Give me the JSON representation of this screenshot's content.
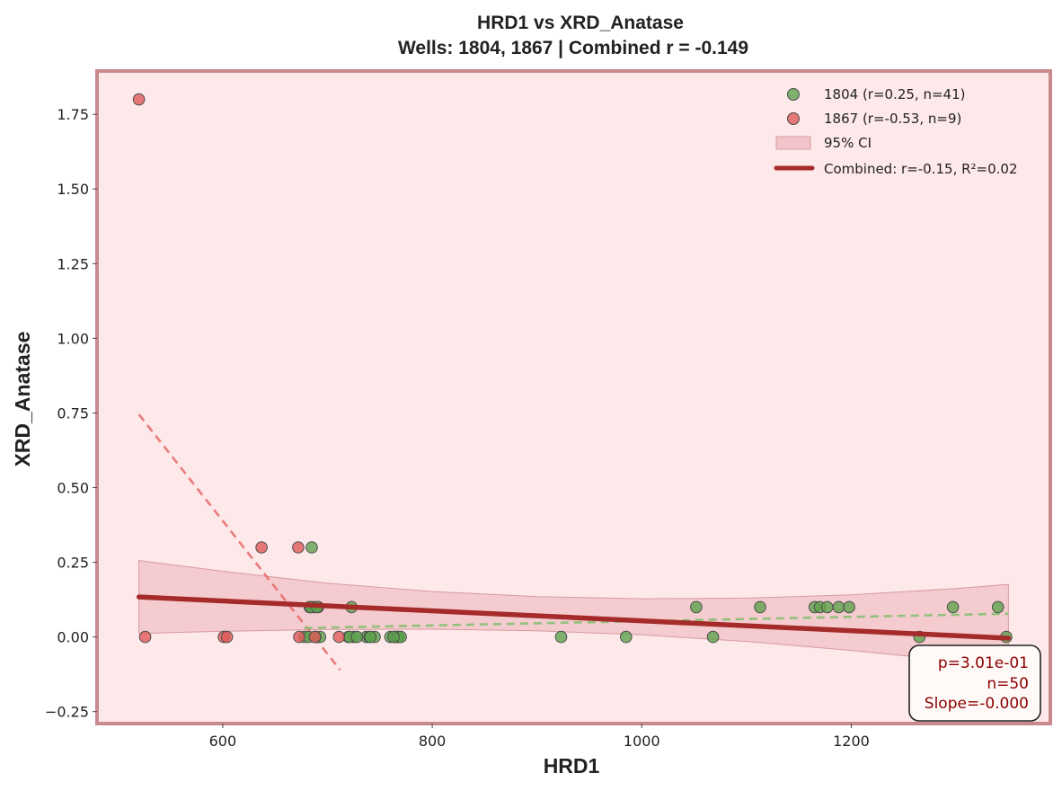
{
  "chart_data": {
    "type": "scatter",
    "title": "HRD1 vs XRD_Anatase",
    "subtitle": "Wells: 1804, 1867 | Combined r = -0.149",
    "xlabel": "HRD1",
    "ylabel": "XRD_Anatase",
    "xlim": [
      480,
      1390
    ],
    "ylim": [
      -0.29,
      1.895
    ],
    "xticks": [
      600,
      800,
      1000,
      1200
    ],
    "yticks": [
      -0.25,
      0.0,
      0.25,
      0.5,
      0.75,
      1.0,
      1.25,
      1.5,
      1.75
    ],
    "ytick_labels": [
      "−0.25",
      "0.00",
      "0.25",
      "0.50",
      "0.75",
      "1.00",
      "1.25",
      "1.50",
      "1.75"
    ],
    "grid": false,
    "legend_position": "top-right",
    "series": [
      {
        "name": "1804 (r=0.25, n=41)",
        "color": "#5ea34d",
        "points": [
          [
            678,
            0.0
          ],
          [
            683,
            0.1
          ],
          [
            685,
            0.3
          ],
          [
            687,
            0.1
          ],
          [
            689,
            0.0
          ],
          [
            691,
            0.1
          ],
          [
            693,
            0.0
          ],
          [
            720,
            0.0
          ],
          [
            723,
            0.1
          ],
          [
            725,
            0.0
          ],
          [
            737,
            0.0
          ],
          [
            740,
            0.0
          ],
          [
            745,
            0.0
          ],
          [
            760,
            0.0
          ],
          [
            764,
            0.0
          ],
          [
            766,
            0.0
          ],
          [
            767,
            0.0
          ],
          [
            768,
            0.0
          ],
          [
            770,
            0.0
          ],
          [
            923,
            0.0
          ],
          [
            985,
            0.0
          ],
          [
            1052,
            0.1
          ],
          [
            1068,
            0.0
          ],
          [
            1113,
            0.1
          ],
          [
            1165,
            0.1
          ],
          [
            1170,
            0.1
          ],
          [
            1177,
            0.1
          ],
          [
            1188,
            0.1
          ],
          [
            1198,
            0.1
          ],
          [
            1265,
            0.0
          ],
          [
            1297,
            0.1
          ],
          [
            1340,
            0.1
          ],
          [
            1348,
            0.0
          ],
          [
            682,
            0.0
          ],
          [
            688,
            0.0
          ],
          [
            721,
            0.0
          ],
          [
            728,
            0.0
          ],
          [
            741,
            0.0
          ],
          [
            763,
            0.0
          ],
          [
            684,
            0.1
          ],
          [
            690,
            0.1
          ]
        ]
      },
      {
        "name": "1867 (r=-0.53, n=9)",
        "color": "#e05a5a",
        "points": [
          [
            520,
            1.8
          ],
          [
            526,
            0.0
          ],
          [
            601,
            0.0
          ],
          [
            604,
            0.0
          ],
          [
            637,
            0.3
          ],
          [
            672,
            0.3
          ],
          [
            673,
            0.0
          ],
          [
            688,
            0.0
          ],
          [
            711,
            0.0
          ]
        ]
      }
    ],
    "fit_lines": [
      {
        "name": "1867 fit",
        "style": "dashed",
        "color": "#e87070",
        "x": [
          520,
          712
        ],
        "y": [
          0.745,
          -0.11
        ]
      },
      {
        "name": "1804 fit",
        "style": "dashed",
        "color": "#86c073",
        "x": [
          678,
          1350
        ],
        "y": [
          0.03,
          0.078
        ]
      }
    ],
    "combined_fit": {
      "label": "Combined: r=-0.15, R²=0.02",
      "color": "#a52a2a",
      "x": [
        520,
        1350
      ],
      "y": [
        0.134,
        -0.004
      ],
      "ci_label": "95% CI",
      "ci_color": "#e8a8ae",
      "ci_x": [
        520,
        600,
        700,
        800,
        900,
        1000,
        1100,
        1200,
        1300,
        1350
      ],
      "ci_upper": [
        0.256,
        0.22,
        0.18,
        0.152,
        0.135,
        0.128,
        0.13,
        0.141,
        0.162,
        0.176
      ],
      "ci_lower": [
        0.012,
        0.019,
        0.025,
        0.026,
        0.021,
        0.007,
        -0.015,
        -0.045,
        -0.08,
        -0.098
      ]
    },
    "stats_box": [
      "p=3.01e-01",
      "n=50",
      "Slope=-0.000"
    ],
    "colors": {
      "plot_background": "#fde8ea",
      "frame": "#c98a8e"
    }
  }
}
